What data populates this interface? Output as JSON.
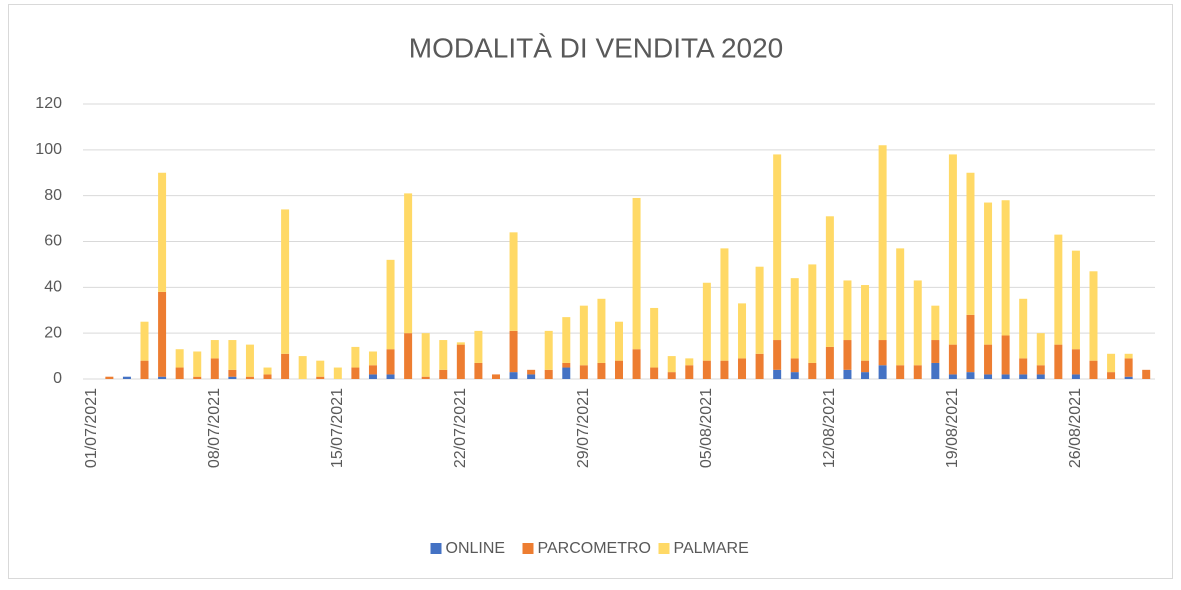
{
  "chart_data": {
    "type": "bar",
    "stacked": true,
    "title": "MODALITÀ DI VENDITA 2020",
    "categories": [
      "01/07/2021",
      null,
      null,
      null,
      null,
      null,
      null,
      "08/07/2021",
      null,
      null,
      null,
      null,
      null,
      null,
      "15/07/2021",
      null,
      null,
      null,
      null,
      null,
      null,
      "22/07/2021",
      null,
      null,
      null,
      null,
      null,
      null,
      "29/07/2021",
      null,
      null,
      null,
      null,
      null,
      null,
      "05/08/2021",
      null,
      null,
      null,
      null,
      null,
      null,
      "12/08/2021",
      null,
      null,
      null,
      null,
      null,
      null,
      "19/08/2021",
      null,
      null,
      null,
      null,
      null,
      null,
      "26/08/2021",
      null,
      null,
      null,
      null
    ],
    "series": [
      {
        "name": "ONLINE",
        "color": "#4472c4",
        "values": [
          0,
          0,
          1,
          0,
          1,
          0,
          0,
          0,
          1,
          0,
          0,
          0,
          0,
          0,
          0,
          0,
          2,
          2,
          0,
          0,
          0,
          0,
          0,
          0,
          3,
          2,
          0,
          5,
          0,
          0,
          0,
          0,
          0,
          0,
          0,
          0,
          0,
          0,
          0,
          4,
          3,
          0,
          0,
          4,
          3,
          6,
          0,
          0,
          7,
          2,
          3,
          2,
          2,
          2,
          2,
          0,
          2,
          0,
          0,
          1,
          0
        ]
      },
      {
        "name": "PARCOMETRO",
        "color": "#ed7d31",
        "values": [
          0,
          1,
          0,
          8,
          37,
          5,
          1,
          9,
          3,
          1,
          2,
          11,
          0,
          1,
          0,
          5,
          4,
          11,
          20,
          1,
          4,
          15,
          7,
          2,
          18,
          2,
          4,
          2,
          6,
          7,
          8,
          13,
          5,
          3,
          6,
          8,
          8,
          9,
          11,
          13,
          6,
          7,
          14,
          13,
          5,
          11,
          6,
          6,
          10,
          13,
          25,
          13,
          17,
          7,
          4,
          15,
          11,
          8,
          3,
          8,
          4
        ]
      },
      {
        "name": "PALMARE",
        "color": "#ffd966",
        "values": [
          0,
          0,
          0,
          17,
          52,
          8,
          11,
          8,
          13,
          14,
          3,
          63,
          10,
          7,
          5,
          9,
          6,
          39,
          61,
          19,
          13,
          1,
          14,
          0,
          43,
          0,
          17,
          20,
          26,
          28,
          17,
          66,
          26,
          7,
          3,
          34,
          49,
          24,
          38,
          81,
          35,
          43,
          57,
          26,
          33,
          85,
          51,
          37,
          15,
          83,
          62,
          62,
          59,
          26,
          14,
          48,
          43,
          39,
          8,
          2,
          0
        ]
      }
    ],
    "ylim": [
      0,
      120
    ],
    "yticks": [
      0,
      20,
      40,
      60,
      80,
      100,
      120
    ],
    "grid": true,
    "legend": "bottom"
  }
}
